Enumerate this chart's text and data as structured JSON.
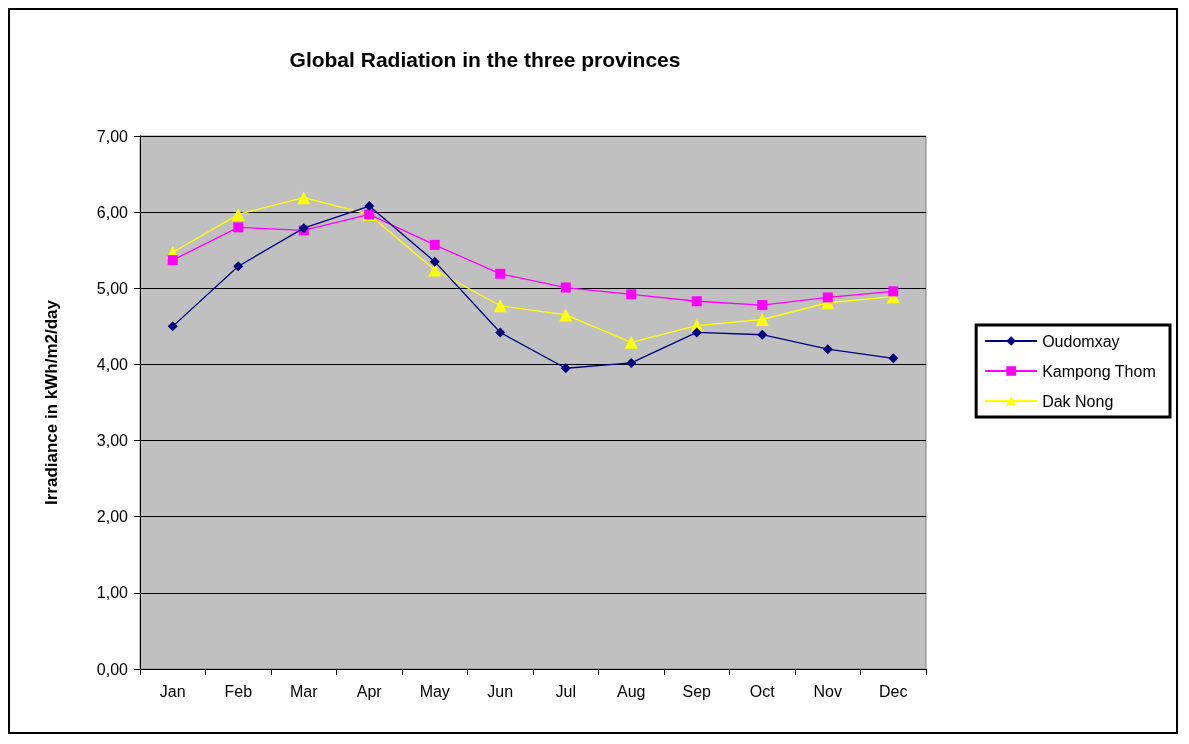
{
  "chart_data": {
    "type": "line",
    "title": "Global Radiation in the three provinces",
    "ylabel": "Irradiance in kWh/m2/day",
    "categories": [
      "Jan",
      "Feb",
      "Mar",
      "Apr",
      "May",
      "Jun",
      "Jul",
      "Aug",
      "Sep",
      "Oct",
      "Nov",
      "Dec"
    ],
    "series": [
      {
        "name": "Oudomxay",
        "color": "#000080",
        "marker": "diamond",
        "values": [
          4.5,
          5.29,
          5.79,
          6.08,
          5.35,
          4.42,
          3.95,
          4.02,
          4.42,
          4.39,
          4.2,
          4.08
        ]
      },
      {
        "name": "Kampong Thom",
        "color": "#ff00ff",
        "marker": "square",
        "values": [
          5.37,
          5.8,
          5.76,
          5.97,
          5.57,
          5.19,
          5.01,
          4.92,
          4.83,
          4.78,
          4.88,
          4.96
        ]
      },
      {
        "name": "Dak Nong",
        "color": "#ffff00",
        "marker": "triangle",
        "values": [
          5.47,
          5.97,
          6.19,
          5.97,
          5.24,
          4.77,
          4.65,
          4.29,
          4.51,
          4.59,
          4.81,
          4.89
        ]
      }
    ],
    "ylim": [
      0,
      7
    ],
    "yticks": [
      {
        "value": 0,
        "label": "0,00"
      },
      {
        "value": 1,
        "label": "1,00"
      },
      {
        "value": 2,
        "label": "2,00"
      },
      {
        "value": 3,
        "label": "3,00"
      },
      {
        "value": 4,
        "label": "4,00"
      },
      {
        "value": 5,
        "label": "5,00"
      },
      {
        "value": 6,
        "label": "6,00"
      },
      {
        "value": 7,
        "label": "7,00"
      }
    ],
    "grid": "y",
    "legend": "right",
    "line_style": "solid"
  }
}
